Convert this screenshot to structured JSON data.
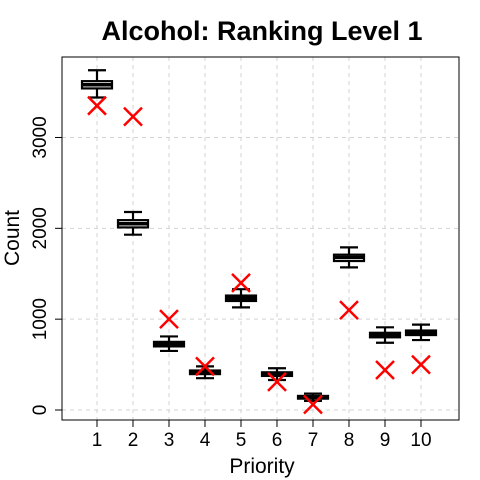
{
  "chart_data": {
    "type": "boxplot",
    "title": "Alcohol: Ranking Level 1",
    "xlabel": "Priority",
    "ylabel": "Count",
    "categories": [
      "1",
      "2",
      "3",
      "4",
      "5",
      "6",
      "7",
      "8",
      "9",
      "10"
    ],
    "y_ticks": [
      0,
      1000,
      2000,
      3000
    ],
    "ylim": [
      -90,
      3900
    ],
    "grid": true,
    "boxes": [
      {
        "category": "1",
        "whisker_low": 3440,
        "q1": 3540,
        "median": 3580,
        "q3": 3620,
        "whisker_high": 3740
      },
      {
        "category": "2",
        "whisker_low": 1930,
        "q1": 2010,
        "median": 2050,
        "q3": 2090,
        "whisker_high": 2180
      },
      {
        "category": "3",
        "whisker_low": 650,
        "q1": 700,
        "median": 725,
        "q3": 750,
        "whisker_high": 810
      },
      {
        "category": "4",
        "whisker_low": 350,
        "q1": 395,
        "median": 415,
        "q3": 435,
        "whisker_high": 480
      },
      {
        "category": "5",
        "whisker_low": 1130,
        "q1": 1200,
        "median": 1230,
        "q3": 1260,
        "whisker_high": 1330
      },
      {
        "category": "6",
        "whisker_low": 330,
        "q1": 375,
        "median": 395,
        "q3": 415,
        "whisker_high": 460
      },
      {
        "category": "7",
        "whisker_low": 100,
        "q1": 125,
        "median": 140,
        "q3": 155,
        "whisker_high": 180
      },
      {
        "category": "8",
        "whisker_low": 1570,
        "q1": 1640,
        "median": 1680,
        "q3": 1710,
        "whisker_high": 1790
      },
      {
        "category": "9",
        "whisker_low": 740,
        "q1": 800,
        "median": 825,
        "q3": 850,
        "whisker_high": 910
      },
      {
        "category": "10",
        "whisker_low": 770,
        "q1": 825,
        "median": 850,
        "q3": 875,
        "whisker_high": 940
      }
    ],
    "observed_points": [
      {
        "category": "1",
        "value": 3350
      },
      {
        "category": "2",
        "value": 3230
      },
      {
        "category": "3",
        "value": 1000
      },
      {
        "category": "4",
        "value": 480
      },
      {
        "category": "5",
        "value": 1400
      },
      {
        "category": "6",
        "value": 310
      },
      {
        "category": "7",
        "value": 60
      },
      {
        "category": "8",
        "value": 1100
      },
      {
        "category": "9",
        "value": 440
      },
      {
        "category": "10",
        "value": 500
      }
    ],
    "colors": {
      "observed": "#ff0000",
      "box": "#000000",
      "grid": "#d3d3d3"
    }
  }
}
